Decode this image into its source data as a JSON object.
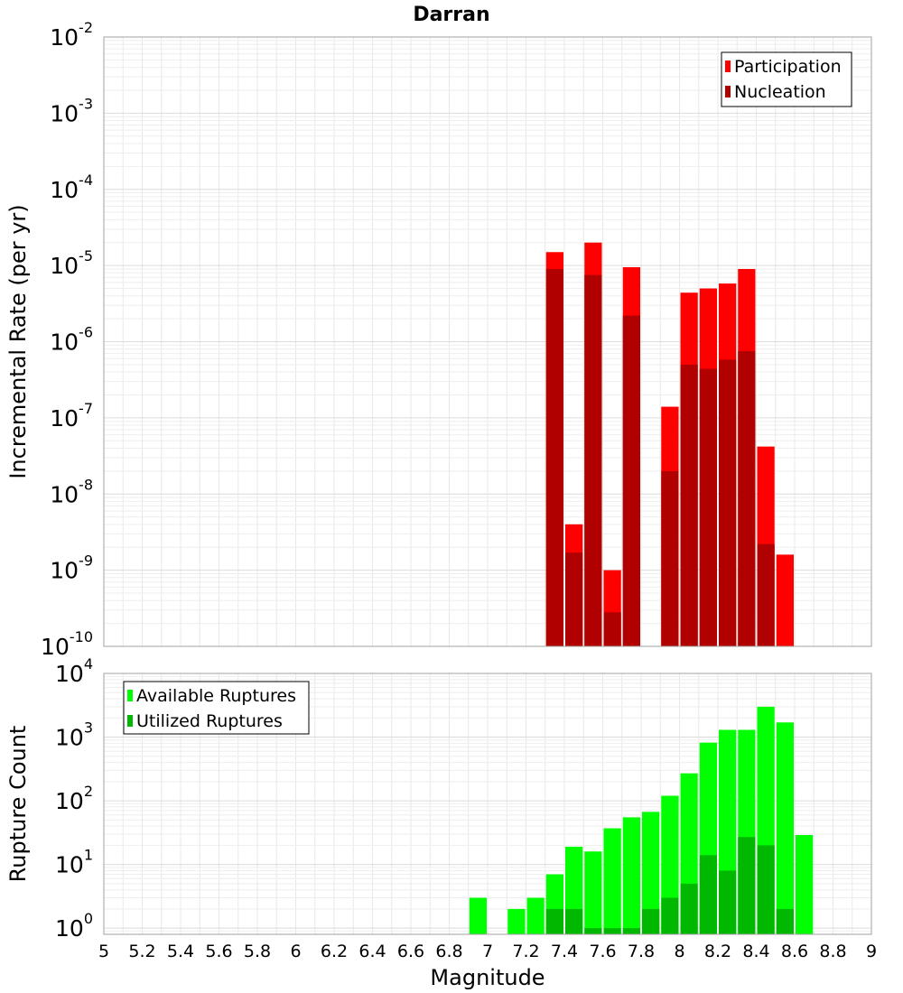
{
  "title": "Darran",
  "chart_data": [
    {
      "type": "bar",
      "scale": "log",
      "ylabel": "Incremental Rate (per yr)",
      "xlim": [
        5,
        9
      ],
      "ylim": [
        1e-10,
        0.01
      ],
      "yticks": [
        {
          "base": "10",
          "exp": "-10",
          "value": 1e-10
        },
        {
          "base": "10",
          "exp": "-9",
          "value": 1e-09
        },
        {
          "base": "10",
          "exp": "-8",
          "value": 1e-08
        },
        {
          "base": "10",
          "exp": "-7",
          "value": 1e-07
        },
        {
          "base": "10",
          "exp": "-6",
          "value": 1e-06
        },
        {
          "base": "10",
          "exp": "-5",
          "value": 1e-05
        },
        {
          "base": "10",
          "exp": "-4",
          "value": 0.0001
        },
        {
          "base": "10",
          "exp": "-3",
          "value": 0.001
        },
        {
          "base": "10",
          "exp": "-2",
          "value": 0.01
        }
      ],
      "grid": true,
      "legend_position": "top-right",
      "bin_width": 0.1,
      "series": [
        {
          "name": "Participation",
          "color": "#ff0000",
          "points": [
            {
              "x": 7.35,
              "y": 1.5e-05
            },
            {
              "x": 7.45,
              "y": 4e-09
            },
            {
              "x": 7.55,
              "y": 2e-05
            },
            {
              "x": 7.65,
              "y": 1e-09
            },
            {
              "x": 7.75,
              "y": 9.5e-06
            },
            {
              "x": 7.95,
              "y": 1.4e-07
            },
            {
              "x": 8.05,
              "y": 4.4e-06
            },
            {
              "x": 8.15,
              "y": 5e-06
            },
            {
              "x": 8.25,
              "y": 5.8e-06
            },
            {
              "x": 8.35,
              "y": 9e-06
            },
            {
              "x": 8.45,
              "y": 4.2e-08
            },
            {
              "x": 8.55,
              "y": 1.6e-09
            }
          ]
        },
        {
          "name": "Nucleation",
          "color": "#b00000",
          "points": [
            {
              "x": 7.35,
              "y": 9e-06
            },
            {
              "x": 7.45,
              "y": 1.7e-09
            },
            {
              "x": 7.55,
              "y": 7.5e-06
            },
            {
              "x": 7.65,
              "y": 2.8e-10
            },
            {
              "x": 7.75,
              "y": 2.2e-06
            },
            {
              "x": 7.95,
              "y": 2e-08
            },
            {
              "x": 8.05,
              "y": 5e-07
            },
            {
              "x": 8.15,
              "y": 4.4e-07
            },
            {
              "x": 8.25,
              "y": 5.8e-07
            },
            {
              "x": 8.35,
              "y": 7.5e-07
            },
            {
              "x": 8.45,
              "y": 2.2e-09
            }
          ]
        }
      ]
    },
    {
      "type": "bar",
      "scale": "log",
      "ylabel": "Rupture Count",
      "xlabel": "Magnitude",
      "xlim": [
        5,
        9
      ],
      "ylim": [
        0.8,
        10000
      ],
      "xticks": [
        "5",
        "5.2",
        "5.4",
        "5.6",
        "5.8",
        "6",
        "6.2",
        "6.4",
        "6.6",
        "6.8",
        "7",
        "7.2",
        "7.4",
        "7.6",
        "7.8",
        "8",
        "8.2",
        "8.4",
        "8.6",
        "8.8",
        "9"
      ],
      "yticks": [
        {
          "base": "10",
          "exp": "0",
          "value": 1
        },
        {
          "base": "10",
          "exp": "1",
          "value": 10
        },
        {
          "base": "10",
          "exp": "2",
          "value": 100
        },
        {
          "base": "10",
          "exp": "3",
          "value": 1000
        },
        {
          "base": "10",
          "exp": "4",
          "value": 10000
        }
      ],
      "grid": true,
      "legend_position": "top-left",
      "bin_width": 0.1,
      "series": [
        {
          "name": "Available Ruptures",
          "color": "#00ff00",
          "points": [
            {
              "x": 6.95,
              "y": 3
            },
            {
              "x": 7.15,
              "y": 2
            },
            {
              "x": 7.25,
              "y": 3
            },
            {
              "x": 7.35,
              "y": 7
            },
            {
              "x": 7.45,
              "y": 19
            },
            {
              "x": 7.55,
              "y": 16
            },
            {
              "x": 7.65,
              "y": 37
            },
            {
              "x": 7.75,
              "y": 55
            },
            {
              "x": 7.85,
              "y": 67
            },
            {
              "x": 7.95,
              "y": 120
            },
            {
              "x": 8.05,
              "y": 270
            },
            {
              "x": 8.15,
              "y": 820
            },
            {
              "x": 8.25,
              "y": 1300
            },
            {
              "x": 8.35,
              "y": 1300
            },
            {
              "x": 8.45,
              "y": 3000
            },
            {
              "x": 8.55,
              "y": 1700
            },
            {
              "x": 8.65,
              "y": 29
            }
          ]
        },
        {
          "name": "Utilized Ruptures",
          "color": "#00b800",
          "points": [
            {
              "x": 7.35,
              "y": 2
            },
            {
              "x": 7.45,
              "y": 2
            },
            {
              "x": 7.55,
              "y": 1
            },
            {
              "x": 7.65,
              "y": 1
            },
            {
              "x": 7.75,
              "y": 1
            },
            {
              "x": 7.85,
              "y": 2
            },
            {
              "x": 7.95,
              "y": 3
            },
            {
              "x": 8.05,
              "y": 5
            },
            {
              "x": 8.15,
              "y": 14
            },
            {
              "x": 8.25,
              "y": 8
            },
            {
              "x": 8.35,
              "y": 27
            },
            {
              "x": 8.45,
              "y": 20
            },
            {
              "x": 8.55,
              "y": 2
            }
          ]
        }
      ]
    }
  ]
}
